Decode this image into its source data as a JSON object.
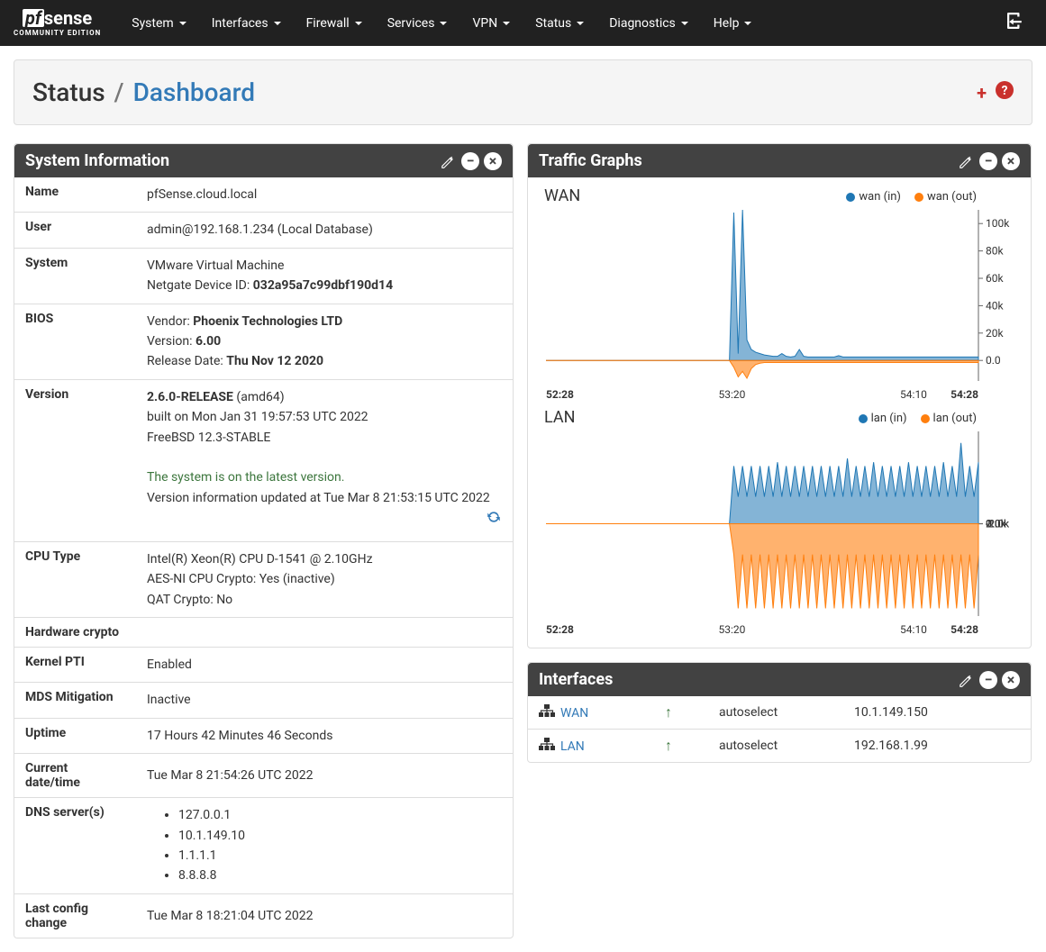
{
  "brand": {
    "pf": "pf",
    "sense": "sense",
    "sub": "COMMUNITY EDITION"
  },
  "nav": [
    "System",
    "Interfaces",
    "Firewall",
    "Services",
    "VPN",
    "Status",
    "Diagnostics",
    "Help"
  ],
  "breadcrumb": {
    "root": "Status",
    "active": "Dashboard"
  },
  "sysinfo": {
    "title": "System Information",
    "rows": {
      "name_label": "Name",
      "name_val": "pfSense.cloud.local",
      "user_label": "User",
      "user_val": "admin@192.168.1.234 (Local Database)",
      "system_label": "System",
      "system_line1": "VMware Virtual Machine",
      "system_line2_pre": "Netgate Device ID: ",
      "system_line2_id": "032a95a7c99dbf190d14",
      "bios_label": "BIOS",
      "bios_vendor_pre": "Vendor: ",
      "bios_vendor": "Phoenix Technologies LTD",
      "bios_version_pre": "Version: ",
      "bios_version": "6.00",
      "bios_date_pre": "Release Date: ",
      "bios_date": "Thu Nov 12 2020",
      "version_label": "Version",
      "version_rel": "2.6.0-RELEASE",
      "version_arch": " (amd64)",
      "version_built": "built on Mon Jan 31 19:57:53 UTC 2022",
      "version_os": "FreeBSD 12.3-STABLE",
      "version_latest": "The system is on the latest version.",
      "version_updated": "Version information updated at Tue Mar 8 21:53:15 UTC 2022",
      "cpu_label": "CPU Type",
      "cpu_model": "Intel(R) Xeon(R) CPU D-1541 @ 2.10GHz",
      "cpu_aesni": "AES-NI CPU Crypto: Yes (inactive)",
      "cpu_qat": "QAT Crypto: No",
      "hwcrypto_label": "Hardware crypto",
      "hwcrypto_val": "",
      "pti_label": "Kernel PTI",
      "pti_val": "Enabled",
      "mds_label": "MDS Mitigation",
      "mds_val": "Inactive",
      "uptime_label": "Uptime",
      "uptime_val": "17 Hours 42 Minutes 46 Seconds",
      "datetime_label": "Current date/time",
      "datetime_val": "Tue Mar 8 21:54:26 UTC 2022",
      "dns_label": "DNS server(s)",
      "dns": [
        "127.0.0.1",
        "10.1.149.10",
        "1.1.1.1",
        "8.8.8.8"
      ],
      "lastcfg_label": "Last config change",
      "lastcfg_val": "Tue Mar 8 18:21:04 UTC 2022"
    }
  },
  "traffic": {
    "title": "Traffic Graphs",
    "colors": {
      "in": "#1f77b4",
      "out": "#ff7f0e",
      "grid": "#cccccc",
      "axis": "#666666",
      "zero": "#ff7f0e"
    },
    "wan": {
      "label": "WAN",
      "legend_in": "wan (in)",
      "legend_out": "wan (out)",
      "yticks": [
        "0.0",
        "20k",
        "40k",
        "60k",
        "80k",
        "100k"
      ],
      "ylim": [
        -15000,
        110000
      ],
      "xticks": [
        "52:28",
        "53:20",
        "54:10",
        "54:28"
      ],
      "xtick_pos": [
        0,
        0.43,
        0.85,
        1.0
      ],
      "data_in": [
        0,
        0,
        0,
        0,
        0,
        0,
        0,
        0,
        0,
        0,
        0,
        0,
        0,
        0,
        0,
        0,
        0,
        0,
        0,
        0,
        0,
        0,
        0,
        0,
        0,
        0,
        0,
        0,
        0,
        0,
        0,
        0,
        0,
        0,
        0,
        0,
        0,
        0,
        0,
        0,
        0,
        0,
        0,
        108000,
        5000,
        110000,
        15000,
        8000,
        6000,
        5000,
        4000,
        3500,
        3000,
        3000,
        5000,
        3000,
        2500,
        3000,
        8000,
        3000,
        2500,
        2500,
        2500,
        2500,
        2500,
        2500,
        2500,
        3500,
        2500,
        2500,
        2500,
        2500,
        2500,
        2500,
        2500,
        2500,
        2500,
        2500,
        2500,
        2500,
        2500,
        2500,
        2500,
        2500,
        2500,
        2500,
        2500,
        2500,
        2500,
        2500,
        2500,
        2500,
        2500,
        2500,
        2500,
        2500,
        2500,
        2500,
        2500,
        2500
      ],
      "data_out": [
        0,
        0,
        0,
        0,
        0,
        0,
        0,
        0,
        0,
        0,
        0,
        0,
        0,
        0,
        0,
        0,
        0,
        0,
        0,
        0,
        0,
        0,
        0,
        0,
        0,
        0,
        0,
        0,
        0,
        0,
        0,
        0,
        0,
        0,
        0,
        0,
        0,
        0,
        0,
        0,
        0,
        0,
        0,
        -5000,
        -12000,
        -8000,
        -13000,
        -6000,
        -3000,
        -2000,
        -1500,
        -1500,
        -1500,
        -1500,
        -1500,
        -1500,
        -1500,
        -1500,
        -1500,
        -1500,
        -1500,
        -1500,
        -1500,
        -1500,
        -1500,
        -1500,
        -1500,
        -1500,
        -1500,
        -1500,
        -1500,
        -1500,
        -1500,
        -1500,
        -1500,
        -1500,
        -1500,
        -1500,
        -1500,
        -1500,
        -1500,
        -1500,
        -1500,
        -1500,
        -1500,
        -1500,
        -1500,
        -1500,
        -1500,
        -1500,
        -1500,
        -1500,
        -1500,
        -1500,
        -1500,
        -1500,
        -1500,
        -1500,
        -1500,
        -1500
      ]
    },
    "lan": {
      "label": "LAN",
      "legend_in": "lan (in)",
      "legend_out": "lan (out)",
      "yticks": [
        "-2.0k",
        "-1.0k",
        "0.0",
        "1.0k",
        "2.0k"
      ],
      "ylim": [
        -2400,
        2400
      ],
      "xticks": [
        "52:28",
        "53:20",
        "54:10",
        "54:28"
      ],
      "xtick_pos": [
        0,
        0.43,
        0.85,
        1.0
      ],
      "data_in": [
        0,
        0,
        0,
        0,
        0,
        0,
        0,
        0,
        0,
        0,
        0,
        0,
        0,
        0,
        0,
        0,
        0,
        0,
        0,
        0,
        0,
        0,
        0,
        0,
        0,
        0,
        0,
        0,
        0,
        0,
        0,
        0,
        0,
        0,
        0,
        0,
        0,
        0,
        0,
        0,
        0,
        0,
        0,
        1500,
        700,
        1500,
        700,
        1500,
        700,
        1500,
        700,
        1500,
        700,
        1600,
        700,
        1500,
        700,
        1500,
        700,
        1500,
        700,
        1500,
        700,
        1500,
        700,
        1500,
        700,
        1500,
        700,
        1700,
        700,
        1500,
        700,
        1500,
        700,
        1600,
        700,
        1500,
        700,
        1500,
        700,
        1500,
        700,
        1600,
        700,
        1500,
        700,
        1500,
        700,
        1500,
        700,
        1600,
        700,
        1500,
        700,
        2100,
        700,
        1500,
        700,
        1600
      ],
      "data_out": [
        0,
        0,
        0,
        0,
        0,
        0,
        0,
        0,
        0,
        0,
        0,
        0,
        0,
        0,
        0,
        0,
        0,
        0,
        0,
        0,
        0,
        0,
        0,
        0,
        0,
        0,
        0,
        0,
        0,
        0,
        0,
        0,
        0,
        0,
        0,
        0,
        0,
        0,
        0,
        0,
        0,
        0,
        0,
        -800,
        -2200,
        -800,
        -2200,
        -800,
        -2200,
        -800,
        -2200,
        -800,
        -2200,
        -800,
        -2200,
        -800,
        -2200,
        -800,
        -2200,
        -800,
        -2200,
        -800,
        -2200,
        -800,
        -2200,
        -800,
        -2200,
        -800,
        -2200,
        -800,
        -2200,
        -800,
        -2200,
        -800,
        -2200,
        -800,
        -2200,
        -800,
        -2200,
        -800,
        -2200,
        -800,
        -2200,
        -800,
        -2200,
        -800,
        -2200,
        -800,
        -2200,
        -800,
        -2200,
        -800,
        -2200,
        -800,
        -2200,
        -800,
        -2200,
        -800,
        -2200,
        -800
      ]
    }
  },
  "interfaces": {
    "title": "Interfaces",
    "rows": [
      {
        "name": "WAN",
        "status": "up",
        "media": "autoselect",
        "ip": "10.1.149.150"
      },
      {
        "name": "LAN",
        "status": "up",
        "media": "autoselect",
        "ip": "192.168.1.99"
      }
    ]
  }
}
